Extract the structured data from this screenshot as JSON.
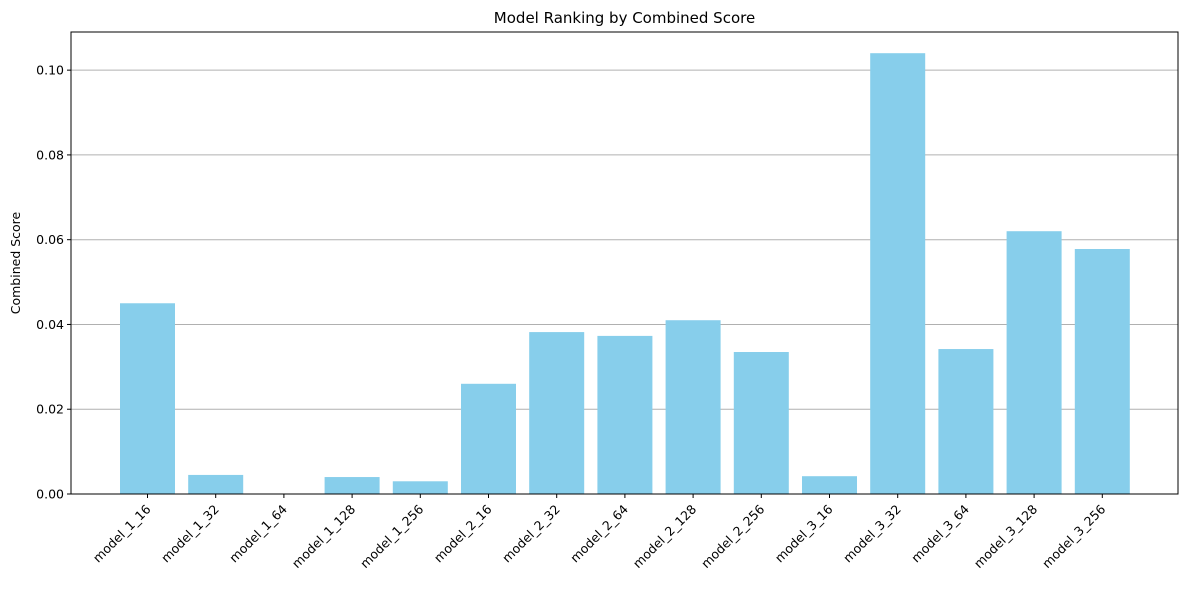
{
  "chart_data": {
    "type": "bar",
    "title": "Model Ranking by Combined Score",
    "xlabel": "",
    "ylabel": "Combined Score",
    "categories": [
      "model_1_16",
      "model_1_32",
      "model_1_64",
      "model_1_128",
      "model_1_256",
      "model_2_16",
      "model_2_32",
      "model_2_64",
      "model_2_128",
      "model_2_256",
      "model_3_16",
      "model_3_32",
      "model_3_64",
      "model_3_128",
      "model_3_256"
    ],
    "values": [
      0.045,
      0.0045,
      0.0,
      0.004,
      0.003,
      0.026,
      0.0382,
      0.0373,
      0.041,
      0.0335,
      0.0042,
      0.104,
      0.0342,
      0.062,
      0.0578
    ],
    "yticks": [
      "0.00",
      "0.02",
      "0.04",
      "0.06",
      "0.08",
      "0.10"
    ],
    "ylim": [
      0,
      0.109
    ],
    "grid": "y-axis only",
    "bar_color": "#87ceeb",
    "grid_color": "#b0b0b0"
  }
}
